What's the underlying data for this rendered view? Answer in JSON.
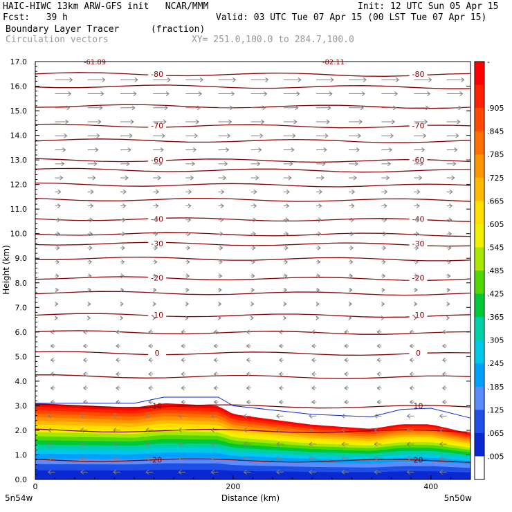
{
  "header": {
    "title": "HAIC-HIWC 13km ARW-GFS init   NCAR/MMM",
    "init": "Init: 12 UTC Sun 05 Apr 15",
    "fcst": "Fcst:   39 h",
    "valid": "Valid: 03 UTC Tue 07 Apr 15 (00 LST Tue 07 Apr 15)",
    "field": "Boundary Layer Tracer",
    "units": "(fraction)",
    "vectors": "Circulation vectors",
    "xy": "XY= 251.0,100.0 to 284.7,100.0"
  },
  "chart_data": {
    "type": "heatmap",
    "title": "Boundary Layer Tracer",
    "xlabel": "Distance (km)",
    "ylabel": "Height (km)",
    "xlim": [
      0,
      440
    ],
    "ylim": [
      0,
      17
    ],
    "x_ticks": [
      "0",
      "200",
      "400"
    ],
    "x_tick_values": [
      0,
      200,
      400
    ],
    "x_end_labels": [
      "5n54w",
      "5n50w"
    ],
    "y_ticks": [
      "0.0",
      "1.0",
      "2.0",
      "3.0",
      "4.0",
      "5.0",
      "6.0",
      "7.0",
      "8.0",
      "9.0",
      "10.0",
      "11.0",
      "12.0",
      "13.0",
      "14.0",
      "15.0",
      "16.0",
      "17.0"
    ],
    "colorbar": {
      "labels": [
        "-",
        ".905",
        ".845",
        ".785",
        ".725",
        ".665",
        ".605",
        ".545",
        ".485",
        ".425",
        ".365",
        ".305",
        ".245",
        ".185",
        ".125",
        ".065",
        ".005"
      ],
      "colors": [
        "#ff0000",
        "#ff2000",
        "#ff4a00",
        "#ff7000",
        "#ff9500",
        "#ffba00",
        "#ffde00",
        "#f0f000",
        "#a8e800",
        "#50d800",
        "#00c838",
        "#00d0a8",
        "#00c8e8",
        "#00a0ff",
        "#5a8cff",
        "#1e50e6",
        "#0a28d2",
        "#ffffff"
      ]
    },
    "tracer_top_km": [
      [
        0,
        3.1
      ],
      [
        100,
        3.1
      ],
      [
        130,
        3.35
      ],
      [
        185,
        3.35
      ],
      [
        200,
        3.0
      ],
      [
        280,
        2.65
      ],
      [
        340,
        2.55
      ],
      [
        370,
        2.85
      ],
      [
        400,
        2.9
      ],
      [
        440,
        2.5
      ]
    ],
    "temperature_contours": [
      {
        "label": "-80",
        "height_km": 16.5
      },
      {
        "label": "-70",
        "height_km": 14.4
      },
      {
        "label": "-60",
        "height_km": 13.0
      },
      {
        "label": "-40",
        "height_km": 10.6
      },
      {
        "label": "-30",
        "height_km": 9.6
      },
      {
        "label": "-20",
        "height_km": 8.2
      },
      {
        "label": "-10",
        "height_km": 6.7
      },
      {
        "label": "0",
        "height_km": 5.15
      },
      {
        "label": "10",
        "height_km": 3.0
      },
      {
        "label": "20",
        "height_km": 0.8
      }
    ],
    "top_labels": [
      "-61.89",
      "-82.11"
    ]
  }
}
